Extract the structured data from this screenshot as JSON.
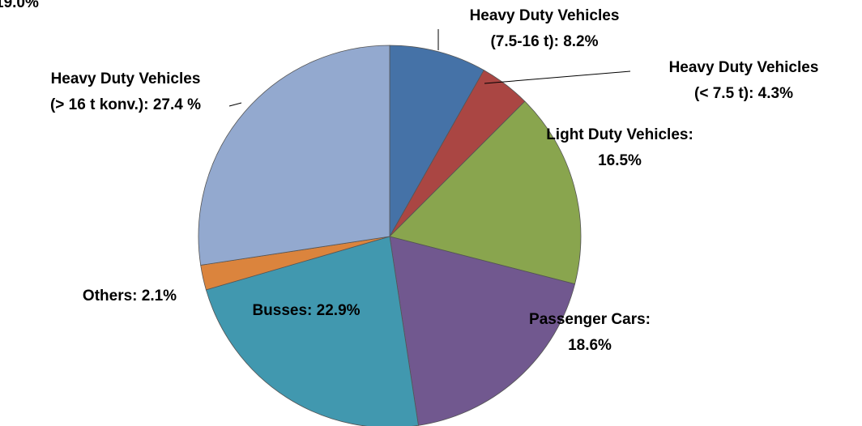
{
  "chart_data": {
    "type": "pie",
    "annotation": "19.0%",
    "categories": [
      "Heavy Duty Vehicles (7.5-16 t)",
      "Heavy Duty Vehicles (< 7.5 t)",
      "Light Duty Vehicles",
      "Passenger Cars",
      "Busses",
      "Others",
      "Heavy Duty Vehicles (> 16 t konv.)"
    ],
    "values": [
      8.2,
      4.3,
      16.5,
      18.6,
      22.9,
      2.1,
      27.4
    ],
    "value_labels": [
      [
        "Heavy Duty Vehicles",
        "(7.5-16 t): 8.2%"
      ],
      [
        "Heavy Duty Vehicles",
        "(< 7.5 t): 4.3%"
      ],
      [
        "Light Duty Vehicles:",
        "16.5%"
      ],
      [
        "Passenger Cars:",
        "18.6%"
      ],
      [
        "Busses: 22.9%"
      ],
      [
        "Others: 2.1%"
      ],
      [
        "Heavy Duty Vehicles",
        "(> 16 t konv.): 27.4 %"
      ]
    ],
    "colors": [
      "#4572a7",
      "#aa4643",
      "#89a54e",
      "#71588f",
      "#4198af",
      "#db843d",
      "#93a9cf"
    ]
  }
}
